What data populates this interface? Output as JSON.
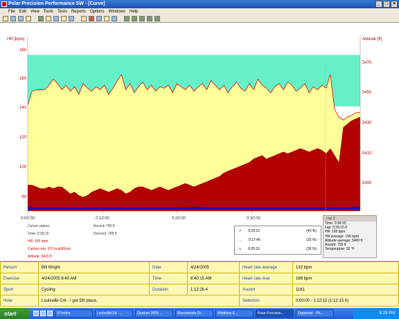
{
  "window": {
    "title": "Polar Precision Performance SW - [Curve]"
  },
  "menu": [
    "File",
    "Edit",
    "View",
    "Tools",
    "Tests",
    "Reports",
    "Options",
    "Windows",
    "Help"
  ],
  "chart_data": {
    "type": "area",
    "ylabel_left": "HR [bpm]",
    "ylabel_right": "Altitude [ft]",
    "y_left_ticks": [
      80,
      100,
      120,
      140,
      160,
      180
    ],
    "y_right_ticks": [
      5390,
      5410,
      5430,
      5450,
      5470
    ],
    "x_ticks": [
      "0:00:00",
      "0:10:00",
      "0:20:00",
      "0:30:00"
    ],
    "zone_limits_bpm": [
      139,
      173
    ],
    "band_label": "0.0 km",
    "series": [
      {
        "values": [
          140,
          149,
          150,
          150,
          150,
          153,
          157,
          154,
          150,
          153,
          149,
          152,
          147,
          154,
          151,
          149,
          152,
          150,
          153,
          147,
          151,
          156,
          160,
          150,
          154,
          148,
          152,
          155,
          150,
          153,
          149,
          152,
          151,
          153,
          148,
          154,
          152,
          150,
          153,
          149,
          152,
          154,
          150,
          156,
          153,
          150,
          153,
          148,
          152,
          155,
          151,
          149,
          154,
          150,
          157,
          153,
          151,
          148,
          152,
          154,
          150,
          155,
          153,
          149,
          151,
          154,
          148,
          152,
          150,
          153,
          151,
          160,
          137,
          132,
          130,
          132,
          133,
          135,
          135
        ]
      },
      {
        "values": [
          5395,
          5395,
          5394,
          5393,
          5393,
          5394,
          5393,
          5394,
          5394,
          5392,
          5390,
          5391,
          5389,
          5388,
          5389,
          5391,
          5392,
          5393,
          5392,
          5391,
          5392,
          5393,
          5392,
          5390,
          5391,
          5393,
          5394,
          5394,
          5393,
          5392,
          5393,
          5394,
          5393,
          5392,
          5393,
          5394,
          5395,
          5396,
          5395,
          5394,
          5395,
          5396,
          5397,
          5398,
          5399,
          5400,
          5402,
          5403,
          5404,
          5405,
          5406,
          5407,
          5408,
          5410,
          5411,
          5412,
          5410,
          5411,
          5412,
          5413,
          5414,
          5413,
          5414,
          5415,
          5416,
          5415,
          5414,
          5415,
          5416,
          5415,
          5413,
          5416,
          5412,
          5408,
          5428,
          5430,
          5432,
          5433,
          5434
        ]
      }
    ]
  },
  "cursor": {
    "header": "Cursor values:",
    "time": "Time: 0:39:15",
    "hr": "HR: 165 bpm",
    "calorie": "Calorie rate: 972 kcal/60min",
    "altitude": "Altitude: 5420 ft",
    "ascent": "Ascent: 755 ft",
    "descent": "Descent: 785 ft"
  },
  "zones": [
    {
      "arrow": "↗",
      "time": "0:29:15",
      "pct": "(40 %)"
    },
    {
      "arrow": "→",
      "time": "0:17:45",
      "pct": "(25 %)"
    },
    {
      "arrow": "↘",
      "time": "0:25:15",
      "pct": "(35 %)"
    }
  ],
  "lap": {
    "header": "Lap 3",
    "lines": [
      "Time: 0:39:15",
      "Lap: 0:39:15.0",
      "HR: 165 bpm",
      "HR average: 156 bpm",
      "Altitude average: 5400 ft",
      "Ascent: 755 ft",
      "Temperature: 32 °F"
    ]
  },
  "info": {
    "person_label": "Person",
    "person": "Bill Wright",
    "date_label": "Date",
    "date": "4/24/2005",
    "hr_avg_label": "Heart rate average",
    "hr_avg": "132 bpm",
    "exercise_label": "Exercise",
    "exercise": "4/24/2005 8:40 AM",
    "time_label": "Time",
    "time": "8:40:15 AM",
    "hr_max_label": "Heart rate max",
    "hr_max": "168 bpm",
    "sport_label": "Sport",
    "sport": "Cycling",
    "duration_label": "Duration",
    "duration": "1:12:26.4",
    "ascent_label": "Ascent",
    "ascent": "1161",
    "note_label": "Note",
    "note": "Louisville Crit - I got 5th place.",
    "selection_label": "Selection",
    "selection": "0:00:00 - 1:12:15 (1:12:15.0)"
  },
  "taskbar": {
    "start": "start",
    "tasks": [
      "3 Firefox",
      "LouisvilleCrit - ...",
      "Quicken 2005 ...",
      "Macromedia Dr...",
      "Windows E...",
      "Polar Precision...",
      "Organizer - Ph..."
    ],
    "clock": "8:29 PM"
  }
}
